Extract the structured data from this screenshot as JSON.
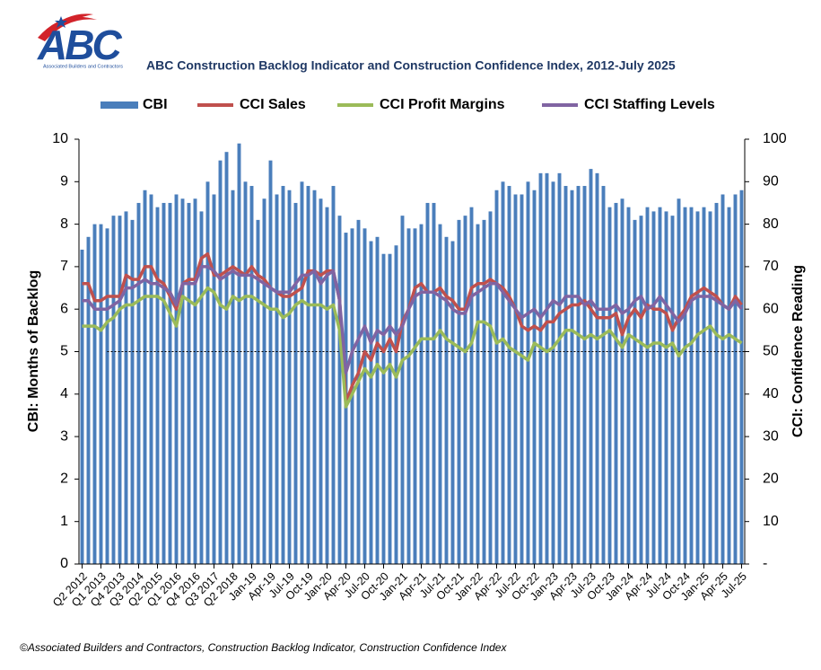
{
  "chart_data": {
    "type": "combo",
    "title": "ABC Construction Backlog Indicator and Construction Confidence Index, 2012-July 2025",
    "logo": "ABC",
    "logo_tagline": "Associated Builders and Contractors",
    "source": "©Associated Builders and Contractors, Construction Backlog Indicator, Construction Confidence Index",
    "y_label": "CBI: Months of Backlog",
    "y2_label": "CCI: Confidence Reading",
    "categories": [
      "Q2 2012",
      null,
      null,
      "Q1 2013",
      null,
      null,
      "Q4 2013",
      null,
      null,
      "Q3 2014",
      null,
      null,
      "Q2 2015",
      null,
      null,
      "Q1 2016",
      null,
      null,
      "Q4 2016",
      null,
      null,
      "Q3 2017",
      null,
      null,
      "Q2 2018",
      null,
      null,
      "Jan-19",
      null,
      null,
      "Apr-19",
      null,
      null,
      "Jul-19",
      null,
      null,
      "Oct-19",
      null,
      null,
      "Jan-20",
      null,
      null,
      "Apr-20",
      null,
      null,
      "Jul-20",
      null,
      null,
      "Oct-20",
      null,
      null,
      "Jan-21",
      null,
      null,
      "Apr-21",
      null,
      null,
      "Jul-21",
      null,
      null,
      "Oct-21",
      null,
      null,
      "Jan-22",
      null,
      null,
      "Apr-22",
      null,
      null,
      "Jul-22",
      null,
      null,
      "Oct-22",
      null,
      null,
      "Jan-23",
      null,
      null,
      "Apr-23",
      null,
      null,
      "Jul-23",
      null,
      null,
      "Oct-23",
      null,
      null,
      "Jan-24",
      null,
      null,
      "Apr-24",
      null,
      null,
      "Jul-24",
      null,
      null,
      "Oct-24",
      null,
      null,
      "Jan-25",
      null,
      null,
      "Apr-25",
      null,
      null,
      "Jul-25"
    ],
    "series": [
      {
        "name": "CBI",
        "type": "bar",
        "axis": "y",
        "color": "#4a7ebb",
        "values": [
          7.4,
          7.7,
          8.0,
          8.0,
          7.9,
          8.2,
          8.2,
          8.3,
          8.1,
          8.5,
          8.8,
          8.7,
          8.4,
          8.5,
          8.5,
          8.7,
          8.6,
          8.5,
          8.6,
          8.3,
          9.0,
          8.7,
          9.5,
          9.7,
          8.8,
          9.9,
          9.0,
          8.9,
          8.1,
          8.6,
          9.5,
          8.7,
          8.9,
          8.8,
          8.5,
          9.0,
          8.9,
          8.8,
          8.6,
          8.4,
          8.9,
          8.2,
          7.8,
          7.9,
          8.1,
          7.9,
          7.6,
          7.7,
          7.3,
          7.3,
          7.5,
          8.2,
          7.9,
          7.9,
          8.0,
          8.5,
          8.5,
          8.0,
          7.7,
          7.6,
          8.1,
          8.2,
          8.4,
          8.0,
          8.1,
          8.3,
          8.8,
          9.0,
          8.9,
          8.7,
          8.7,
          9.0,
          8.8,
          9.2,
          9.2,
          9.0,
          9.2,
          8.9,
          8.8,
          8.9,
          8.9,
          9.3,
          9.2,
          8.9,
          8.4,
          8.5,
          8.6,
          8.4,
          8.1,
          8.2,
          8.4,
          8.3,
          8.4,
          8.3,
          8.2,
          8.6,
          8.4,
          8.4,
          8.3,
          8.4,
          8.3,
          8.5,
          8.7,
          8.4,
          8.7,
          8.8
        ]
      },
      {
        "name": "CCI Sales",
        "type": "line",
        "axis": "y2",
        "color": "#c0504d",
        "values": [
          66,
          66,
          62,
          62,
          63,
          63,
          63,
          68,
          67,
          67,
          70,
          70,
          67,
          66,
          63,
          60,
          66,
          67,
          67,
          72,
          73,
          68,
          68,
          69,
          70,
          69,
          68,
          70,
          68,
          67,
          65,
          64,
          63,
          63,
          64,
          65,
          69,
          69,
          68,
          69,
          69,
          62,
          38,
          42,
          45,
          50,
          48,
          52,
          50,
          53,
          50,
          57,
          60,
          65,
          66,
          64,
          64,
          65,
          63,
          62,
          60,
          60,
          65,
          66,
          66,
          67,
          66,
          65,
          63,
          60,
          56,
          55,
          56,
          55,
          57,
          57,
          59,
          60,
          61,
          61,
          62,
          60,
          58,
          58,
          58,
          59,
          54,
          58,
          60,
          58,
          61,
          60,
          60,
          59,
          55,
          58,
          60,
          63,
          64,
          65,
          64,
          63,
          61,
          60,
          63,
          61
        ]
      },
      {
        "name": "CCI Profit Margins",
        "type": "line",
        "axis": "y2",
        "color": "#9bbb59",
        "values": [
          56,
          56,
          56,
          55,
          57,
          58,
          60,
          61,
          61,
          62,
          63,
          63,
          63,
          62,
          59,
          56,
          63,
          62,
          61,
          63,
          65,
          64,
          61,
          60,
          63,
          62,
          63,
          63,
          62,
          61,
          60,
          60,
          58,
          59,
          61,
          62,
          61,
          61,
          61,
          60,
          61,
          55,
          37,
          40,
          43,
          46,
          44,
          47,
          45,
          47,
          44,
          48,
          49,
          51,
          53,
          53,
          53,
          55,
          53,
          52,
          51,
          50,
          52,
          57,
          57,
          56,
          52,
          53,
          51,
          50,
          49,
          48,
          52,
          51,
          50,
          51,
          53,
          55,
          55,
          54,
          53,
          54,
          53,
          54,
          55,
          53,
          51,
          54,
          53,
          52,
          51,
          52,
          52,
          51,
          52,
          49,
          51,
          52,
          54,
          55,
          56,
          54,
          53,
          54,
          53,
          52
        ]
      },
      {
        "name": "CCI Staffing Levels",
        "type": "line",
        "axis": "y2",
        "color": "#8064a2",
        "values": [
          62,
          62,
          60,
          60,
          60,
          61,
          62,
          65,
          65,
          66,
          67,
          66,
          66,
          65,
          64,
          61,
          66,
          66,
          66,
          70,
          70,
          69,
          67,
          68,
          69,
          68,
          68,
          68,
          67,
          66,
          65,
          64,
          64,
          64,
          66,
          68,
          68,
          69,
          66,
          68,
          69,
          62,
          45,
          50,
          53,
          56,
          52,
          55,
          54,
          56,
          54,
          56,
          60,
          63,
          64,
          64,
          64,
          63,
          62,
          60,
          59,
          59,
          63,
          64,
          65,
          66,
          66,
          64,
          62,
          60,
          58,
          59,
          60,
          58,
          60,
          62,
          61,
          63,
          63,
          63,
          61,
          62,
          60,
          60,
          60,
          61,
          59,
          60,
          62,
          63,
          60,
          61,
          63,
          61,
          59,
          57,
          59,
          62,
          63,
          63,
          63,
          62,
          61,
          60,
          62,
          60
        ]
      }
    ],
    "ylim": [
      0,
      10
    ],
    "yticks": [
      0,
      1,
      2,
      3,
      4,
      5,
      6,
      7,
      8,
      9,
      10
    ],
    "y2lim": [
      0,
      100
    ],
    "y2ticks": [
      {
        "value": 0,
        "label": "-"
      },
      10,
      20,
      30,
      40,
      50,
      60,
      70,
      80,
      90,
      100
    ],
    "y2_reference": 50,
    "legend": "top"
  }
}
